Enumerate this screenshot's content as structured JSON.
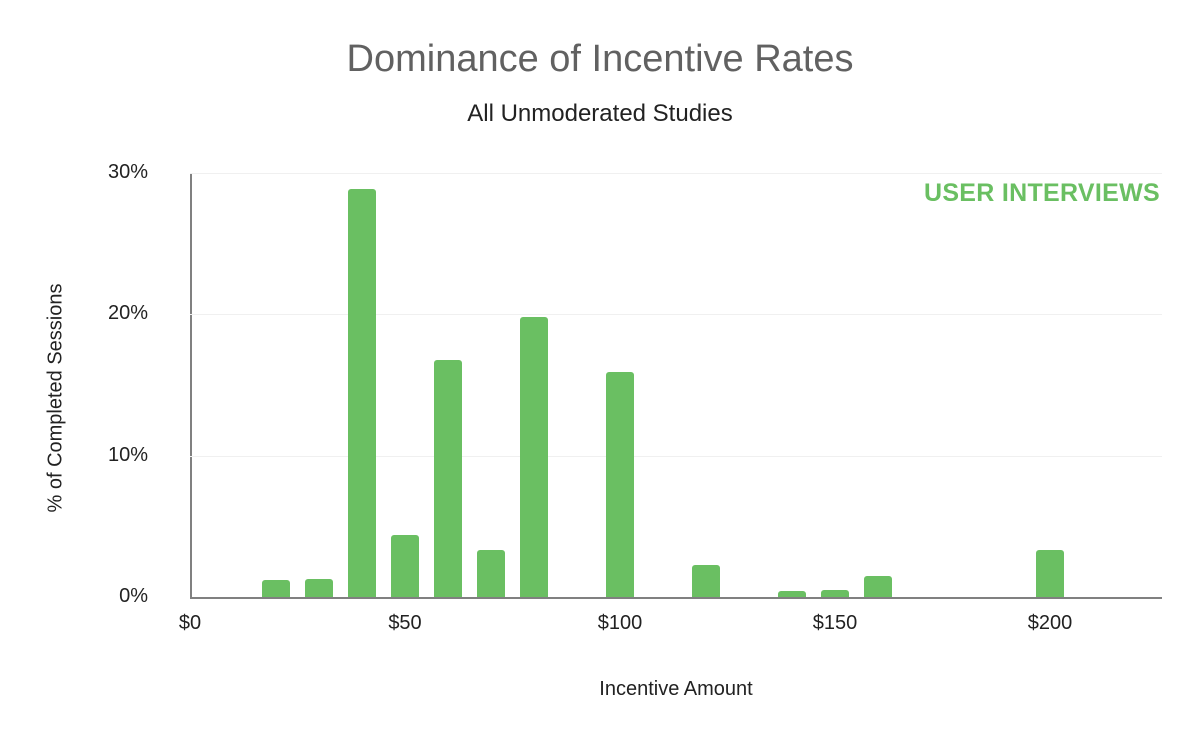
{
  "chart_data": {
    "type": "bar",
    "title": "Dominance of Incentive Rates",
    "subtitle": "All Unmoderated Studies",
    "watermark": "USER INTERVIEWS",
    "xlabel": "Incentive Amount",
    "ylabel": "% of Completed Sessions",
    "x_ticks": [
      "$0",
      "$50",
      "$100",
      "$150",
      "$200"
    ],
    "y_ticks": [
      "0%",
      "10%",
      "20%",
      "30%"
    ],
    "ylim": [
      0,
      30
    ],
    "xlim": [
      0,
      225
    ],
    "grid": true,
    "bar_color": "#6abf62",
    "x": [
      20,
      30,
      40,
      50,
      60,
      70,
      80,
      100,
      120,
      140,
      150,
      160,
      200
    ],
    "values": [
      1.2,
      1.3,
      28.9,
      4.4,
      16.8,
      3.3,
      19.8,
      15.9,
      2.3,
      0.4,
      0.5,
      1.5,
      3.3
    ]
  }
}
